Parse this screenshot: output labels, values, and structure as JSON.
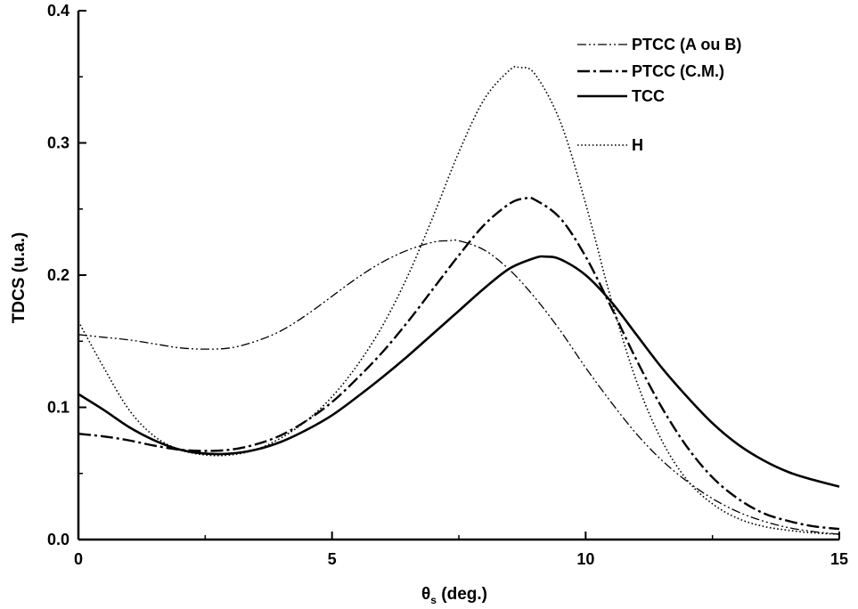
{
  "chart_data": {
    "type": "line",
    "title": "",
    "xlabel": {
      "symbol": "θ",
      "subscript": "s",
      "unit": " (deg.)"
    },
    "ylabel": "TDCS (u.a.)",
    "xlim": [
      0,
      15
    ],
    "ylim": [
      0,
      0.4
    ],
    "xticks": [
      0,
      5,
      10,
      15
    ],
    "xtick_labels": [
      "0",
      "5",
      "10",
      "15"
    ],
    "yticks": [
      0.0,
      0.1,
      0.2,
      0.3,
      0.4
    ],
    "ytick_labels": [
      "0.0",
      "0.1",
      "0.2",
      "0.3",
      "0.4"
    ],
    "grid": false,
    "legend_position": "top-right",
    "series": [
      {
        "name": "PTCC (A ou B)",
        "style": "dash-dot-dot",
        "x": [
          0,
          0.5,
          1,
          1.5,
          2,
          2.5,
          3,
          3.5,
          4,
          4.5,
          5,
          5.5,
          6,
          6.5,
          7,
          7.3,
          7.5,
          8,
          8.5,
          9,
          9.5,
          10,
          10.5,
          11,
          11.5,
          12,
          12.5,
          13,
          13.5,
          14,
          14.5,
          15
        ],
        "y": [
          0.155,
          0.153,
          0.151,
          0.148,
          0.145,
          0.144,
          0.145,
          0.15,
          0.158,
          0.17,
          0.184,
          0.198,
          0.21,
          0.219,
          0.225,
          0.226,
          0.226,
          0.219,
          0.204,
          0.183,
          0.158,
          0.13,
          0.104,
          0.08,
          0.06,
          0.044,
          0.031,
          0.021,
          0.014,
          0.009,
          0.006,
          0.004
        ]
      },
      {
        "name": "PTCC (C.M.)",
        "style": "dash-dot",
        "x": [
          0,
          0.5,
          1,
          1.5,
          2,
          2.5,
          3,
          3.5,
          4,
          4.5,
          5,
          5.5,
          6,
          6.5,
          7,
          7.5,
          8,
          8.5,
          8.8,
          9,
          9.5,
          10,
          10.5,
          11,
          11.5,
          12,
          12.5,
          13,
          13.5,
          14,
          14.5,
          15
        ],
        "y": [
          0.08,
          0.078,
          0.075,
          0.071,
          0.068,
          0.067,
          0.068,
          0.072,
          0.079,
          0.09,
          0.104,
          0.122,
          0.142,
          0.165,
          0.19,
          0.215,
          0.238,
          0.254,
          0.258,
          0.257,
          0.243,
          0.214,
          0.176,
          0.136,
          0.1,
          0.07,
          0.047,
          0.031,
          0.02,
          0.014,
          0.01,
          0.008
        ]
      },
      {
        "name": "TCC",
        "style": "solid",
        "x": [
          0,
          0.5,
          1,
          1.5,
          2,
          2.5,
          3,
          3.5,
          4,
          4.5,
          5,
          5.5,
          6,
          6.5,
          7,
          7.5,
          8,
          8.5,
          9,
          9.2,
          9.5,
          10,
          10.5,
          11,
          11.5,
          12,
          12.5,
          13,
          13.5,
          14,
          14.5,
          15
        ],
        "y": [
          0.11,
          0.098,
          0.085,
          0.075,
          0.068,
          0.065,
          0.065,
          0.068,
          0.074,
          0.083,
          0.094,
          0.108,
          0.123,
          0.139,
          0.156,
          0.173,
          0.19,
          0.205,
          0.213,
          0.214,
          0.212,
          0.2,
          0.18,
          0.155,
          0.13,
          0.108,
          0.088,
          0.072,
          0.06,
          0.051,
          0.045,
          0.04
        ]
      },
      {
        "name": "H",
        "style": "dotted",
        "x": [
          0,
          0.5,
          1,
          1.5,
          2,
          2.5,
          3,
          3.5,
          4,
          4.5,
          5,
          5.5,
          6,
          6.5,
          7,
          7.5,
          8,
          8.5,
          8.7,
          9,
          9.5,
          10,
          10.5,
          11,
          11.5,
          12,
          12.5,
          13,
          13.5,
          14,
          14.5,
          15
        ],
        "y": [
          0.165,
          0.13,
          0.098,
          0.078,
          0.068,
          0.064,
          0.064,
          0.068,
          0.077,
          0.09,
          0.108,
          0.132,
          0.162,
          0.2,
          0.245,
          0.293,
          0.333,
          0.355,
          0.357,
          0.352,
          0.316,
          0.254,
          0.182,
          0.12,
          0.075,
          0.045,
          0.027,
          0.016,
          0.01,
          0.007,
          0.005,
          0.004
        ]
      }
    ]
  }
}
